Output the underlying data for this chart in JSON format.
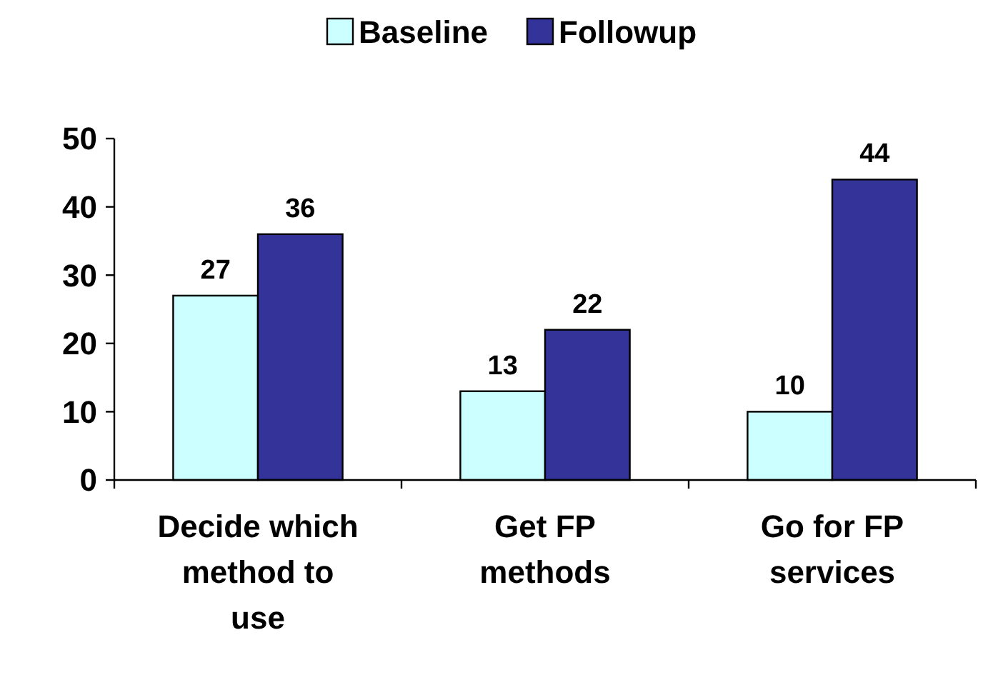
{
  "chart_data": {
    "type": "bar",
    "categories": [
      "Decide which method to use",
      "Get FP methods",
      "Go for FP services"
    ],
    "series": [
      {
        "name": "Baseline",
        "color": "#ccffff",
        "values": [
          27,
          13,
          10
        ]
      },
      {
        "name": "Followup",
        "color": "#333399",
        "values": [
          36,
          22,
          44
        ]
      }
    ],
    "ylim": [
      0,
      50
    ],
    "yticks": [
      0,
      10,
      20,
      30,
      40,
      50
    ],
    "data_labels": true,
    "legend": "top",
    "grid": false
  }
}
